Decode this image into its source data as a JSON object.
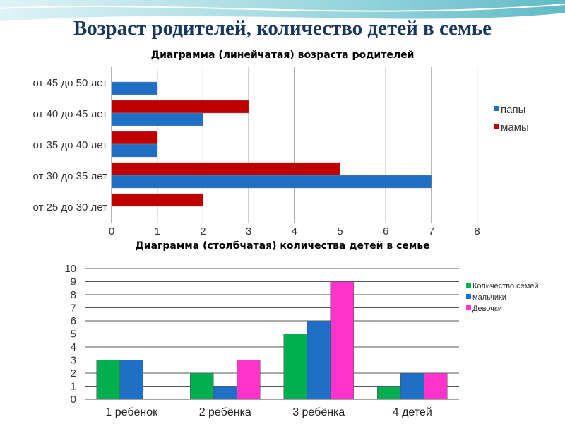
{
  "slide": {
    "title": "Возраст родителей, количество детей в семье"
  },
  "colors": {
    "papy": "#1f6fc6",
    "mamy": "#c00000",
    "families": "#00b050",
    "boys": "#1f6fc6",
    "girls": "#ff33cc"
  },
  "chart_data": [
    {
      "type": "bar",
      "orientation": "horizontal",
      "title": "Диаграмма (линейчатая) возраста родителей",
      "categories": [
        "от 25 до 30 лет",
        "от 30 до 35 лет",
        "от 35 до 40 лет",
        "от 40 до 45 лет",
        "от 45 до 50 лет"
      ],
      "series": [
        {
          "name": "папы",
          "values": [
            0,
            7,
            1,
            2,
            1
          ]
        },
        {
          "name": "мамы",
          "values": [
            2,
            5,
            1,
            3,
            0
          ]
        }
      ],
      "xlim": [
        0,
        8
      ],
      "xticks": [
        "0",
        "1",
        "2",
        "3",
        "4",
        "5",
        "6",
        "7",
        "8"
      ],
      "grid": true,
      "legend": "right"
    },
    {
      "type": "bar",
      "title": "Диаграмма (столбчатая) количества детей в семье",
      "categories": [
        "1 ребёнок",
        "2 ребёнка",
        "3 ребёнка",
        "4 детей"
      ],
      "series": [
        {
          "name": "Количество семей",
          "values": [
            3,
            2,
            5,
            1
          ]
        },
        {
          "name": "мальчики",
          "values": [
            3,
            1,
            6,
            2
          ]
        },
        {
          "name": "Девочки",
          "values": [
            0,
            3,
            9,
            2
          ]
        }
      ],
      "ylim": [
        0,
        10
      ],
      "yticks": [
        "0",
        "1",
        "2",
        "3",
        "4",
        "5",
        "6",
        "7",
        "8",
        "9",
        "10"
      ],
      "grid": true,
      "legend": "right"
    }
  ]
}
